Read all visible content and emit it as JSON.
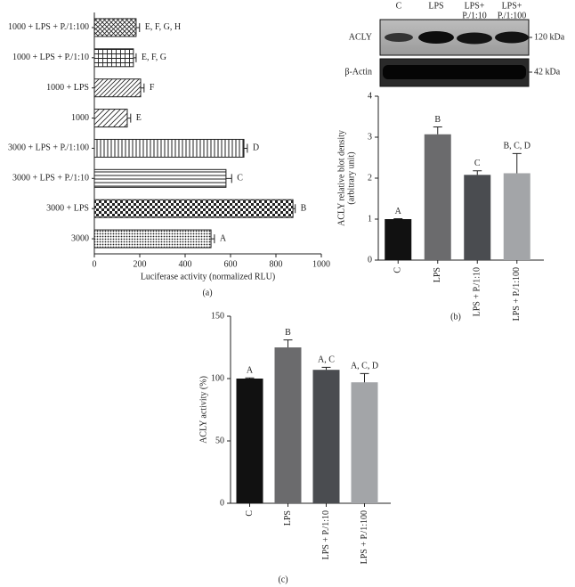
{
  "chart_data": [
    {
      "type": "hbar",
      "panel": "(a)",
      "categories": [
        "1000 + LPS + P./1:100",
        "1000 + LPS + P./1:10",
        "1000 + LPS",
        "1000",
        "3000 + LPS + P./1:100",
        "3000 + LPS + P./1:10",
        "3000 + LPS",
        "3000"
      ],
      "values": [
        184,
        172,
        204,
        145,
        659,
        580,
        875,
        514
      ],
      "errors": [
        15,
        12,
        15,
        15,
        15,
        25,
        10,
        15
      ],
      "labels": [
        "E, F, G, H",
        "E, F, G",
        "F",
        "E",
        "D",
        "C",
        "B",
        "A"
      ],
      "xlabel": "Luciferase activity (normalized RLU)",
      "xlim": [
        0,
        1000
      ],
      "xticks": [
        0,
        200,
        400,
        600,
        800,
        1000
      ],
      "color": "#222222"
    },
    {
      "type": "bar",
      "panel": "(b)",
      "categories": [
        "C",
        "LPS",
        "LPS + P./1:10",
        "LPS + P./1:100"
      ],
      "values": [
        1.0,
        3.07,
        2.08,
        2.12
      ],
      "errors": [
        0.01,
        0.18,
        0.1,
        0.48
      ],
      "labels": [
        "A",
        "B",
        "C",
        "B, C, D"
      ],
      "colors": [
        "#111111",
        "#6b6b6d",
        "#4a4c50",
        "#a3a5a8"
      ],
      "ylabel": [
        "ACLY relative blot density",
        "(arbitrary unit)"
      ],
      "ylim": [
        0,
        4
      ],
      "yticks": [
        0,
        1,
        2,
        3,
        4
      ]
    },
    {
      "type": "bar",
      "panel": "(c)",
      "categories": [
        "C",
        "LPS",
        "LPS + P./1:10",
        "LPS + P./1:100"
      ],
      "values": [
        100,
        125,
        107,
        97
      ],
      "errors": [
        0.5,
        6,
        2,
        7
      ],
      "labels": [
        "A",
        "B",
        "A, C",
        "A, C, D"
      ],
      "colors": [
        "#111111",
        "#6b6b6d",
        "#4a4c50",
        "#a3a5a8"
      ],
      "ylabel": [
        "ACLY activity (%)"
      ],
      "ylim": [
        0,
        150
      ],
      "yticks": [
        0,
        50,
        100,
        150
      ]
    }
  ],
  "blot": {
    "lanes": [
      [
        "C"
      ],
      [
        "LPS"
      ],
      [
        "LPS+",
        "P./1:10"
      ],
      [
        "LPS+",
        "P./1:100"
      ]
    ],
    "rows": [
      {
        "label": "ACLY",
        "size": "120 kDa"
      },
      {
        "label": "β-Actin",
        "size": "42 kDa"
      }
    ]
  }
}
